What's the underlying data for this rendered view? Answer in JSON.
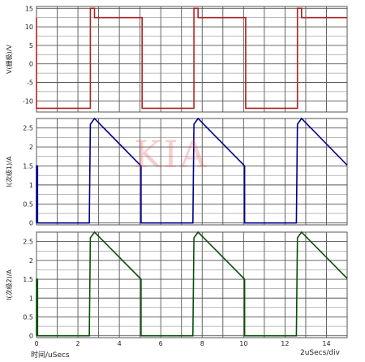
{
  "chart_data": [
    {
      "type": "line",
      "ylabel": "V(栅极)/V",
      "xlim": [
        0,
        15
      ],
      "ylim": [
        -13,
        15.5
      ],
      "yticks": [
        -10,
        -5,
        0,
        5,
        10,
        15
      ],
      "grid": true,
      "color": "#b22222",
      "series": [
        {
          "x": [
            0,
            0.0,
            2.6,
            2.6,
            2.8,
            2.8,
            5.1,
            5.1,
            7.6,
            7.6,
            7.8,
            7.8,
            10.1,
            10.1,
            12.6,
            12.6,
            12.8,
            12.8,
            15
          ],
          "y": [
            12.5,
            -12,
            -12,
            15,
            15,
            12.5,
            12.5,
            -12,
            -12,
            15,
            15,
            12.5,
            12.5,
            -12,
            -12,
            15,
            15,
            12.5,
            12.5
          ]
        }
      ]
    },
    {
      "type": "line",
      "ylabel": "I(次级1)/A",
      "xlim": [
        0,
        15
      ],
      "ylim": [
        -0.05,
        2.75
      ],
      "yticks": [
        0,
        0.5,
        1,
        1.5,
        2,
        2.5
      ],
      "grid": true,
      "color": "#00008b",
      "series": [
        {
          "x": [
            0,
            0,
            0.05,
            0.05,
            2.55,
            2.6,
            2.8,
            5.05,
            5.05,
            7.55,
            7.6,
            7.8,
            10.05,
            10.05,
            12.55,
            12.6,
            12.8,
            15
          ],
          "y": [
            0,
            1.5,
            1.5,
            0,
            0,
            2.6,
            2.75,
            1.5,
            0,
            0,
            2.6,
            2.75,
            1.5,
            0,
            0,
            2.6,
            2.75,
            1.52
          ]
        }
      ]
    },
    {
      "type": "line",
      "ylabel": "I(次级2)/A",
      "xlabel": "时间/uSecs",
      "xlim": [
        0,
        15
      ],
      "ylim": [
        -0.05,
        2.75
      ],
      "xticks": [
        0,
        2,
        4,
        6,
        8,
        10,
        12,
        14
      ],
      "yticks": [
        0,
        0.5,
        1,
        1.5,
        2,
        2.5
      ],
      "grid": true,
      "color": "#0b4f0b",
      "series": [
        {
          "x": [
            0,
            0,
            0.05,
            0.05,
            2.55,
            2.6,
            2.8,
            5.05,
            5.05,
            7.55,
            7.6,
            7.8,
            10.05,
            10.05,
            12.55,
            12.6,
            12.8,
            15
          ],
          "y": [
            0,
            1.5,
            1.5,
            0,
            0,
            2.6,
            2.75,
            1.5,
            0,
            0,
            2.6,
            2.75,
            1.5,
            0,
            0,
            2.6,
            2.75,
            1.52
          ]
        }
      ]
    }
  ],
  "footer": {
    "xlabel": "时间/uSecs",
    "time_per_div": "2uSecs/div"
  },
  "watermark": "KIA"
}
